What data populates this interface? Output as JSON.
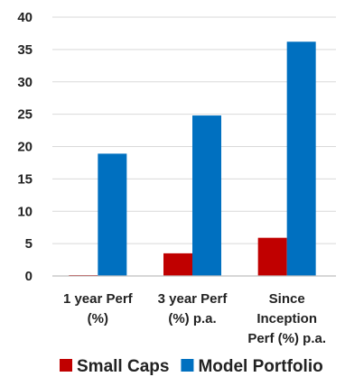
{
  "chart_data": {
    "type": "bar",
    "title": "",
    "xlabel": "",
    "ylabel": "",
    "ylim": [
      0,
      40
    ],
    "yticks": [
      0,
      5,
      10,
      15,
      20,
      25,
      30,
      35,
      40
    ],
    "grid": true,
    "legend_position": "bottom",
    "categories": [
      [
        "1 year Perf",
        "(%)"
      ],
      [
        "3 year Perf",
        "(%) p.a."
      ],
      [
        "Since",
        "Inception",
        "Perf (%) p.a."
      ]
    ],
    "series": [
      {
        "name": "Small Caps",
        "color": "#c00000",
        "values": [
          0.1,
          3.5,
          5.9
        ]
      },
      {
        "name": "Model Portfolio",
        "color": "#0070c0",
        "values": [
          18.9,
          24.8,
          36.2
        ]
      }
    ]
  }
}
